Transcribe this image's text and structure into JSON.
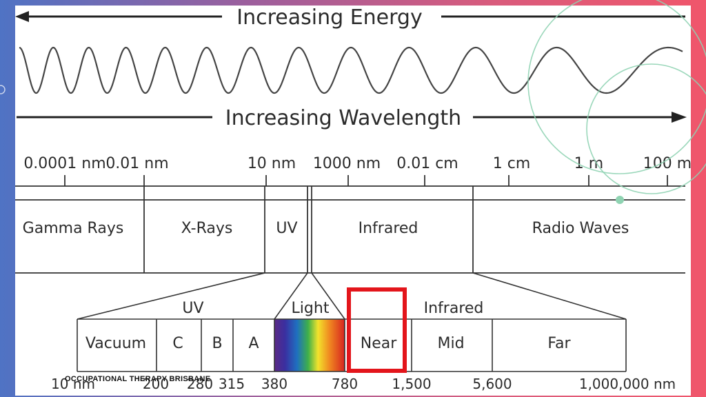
{
  "energy_title": "Increasing Energy",
  "wavelength_title": "Increasing Wavelength",
  "scale_ticks": [
    "0.0001 nm",
    "0.01 nm",
    "10 nm",
    "1000 nm",
    "0.01 cm",
    "1 cm",
    "1 m",
    "100 m"
  ],
  "bands": [
    "Gamma Rays",
    "X-Rays",
    "UV",
    "Infrared",
    "Radio Waves"
  ],
  "group_labels": {
    "uv": "UV",
    "light": "Light",
    "infrared": "Infrared"
  },
  "sub_bands": [
    "Vacuum",
    "C",
    "B",
    "A",
    "Near",
    "Mid",
    "Far"
  ],
  "bottom_ticks": [
    "10 nm",
    "200",
    "280",
    "315",
    "380",
    "780",
    "1,500",
    "5,600",
    "1,000,000 nm"
  ],
  "highlight": {
    "band": "Near",
    "color": "#e3151b"
  },
  "caption": "OCCUPATIONAL THERAPY BRISBANE",
  "colors": {
    "ring": "#8fd3b2",
    "line": "#333333"
  }
}
